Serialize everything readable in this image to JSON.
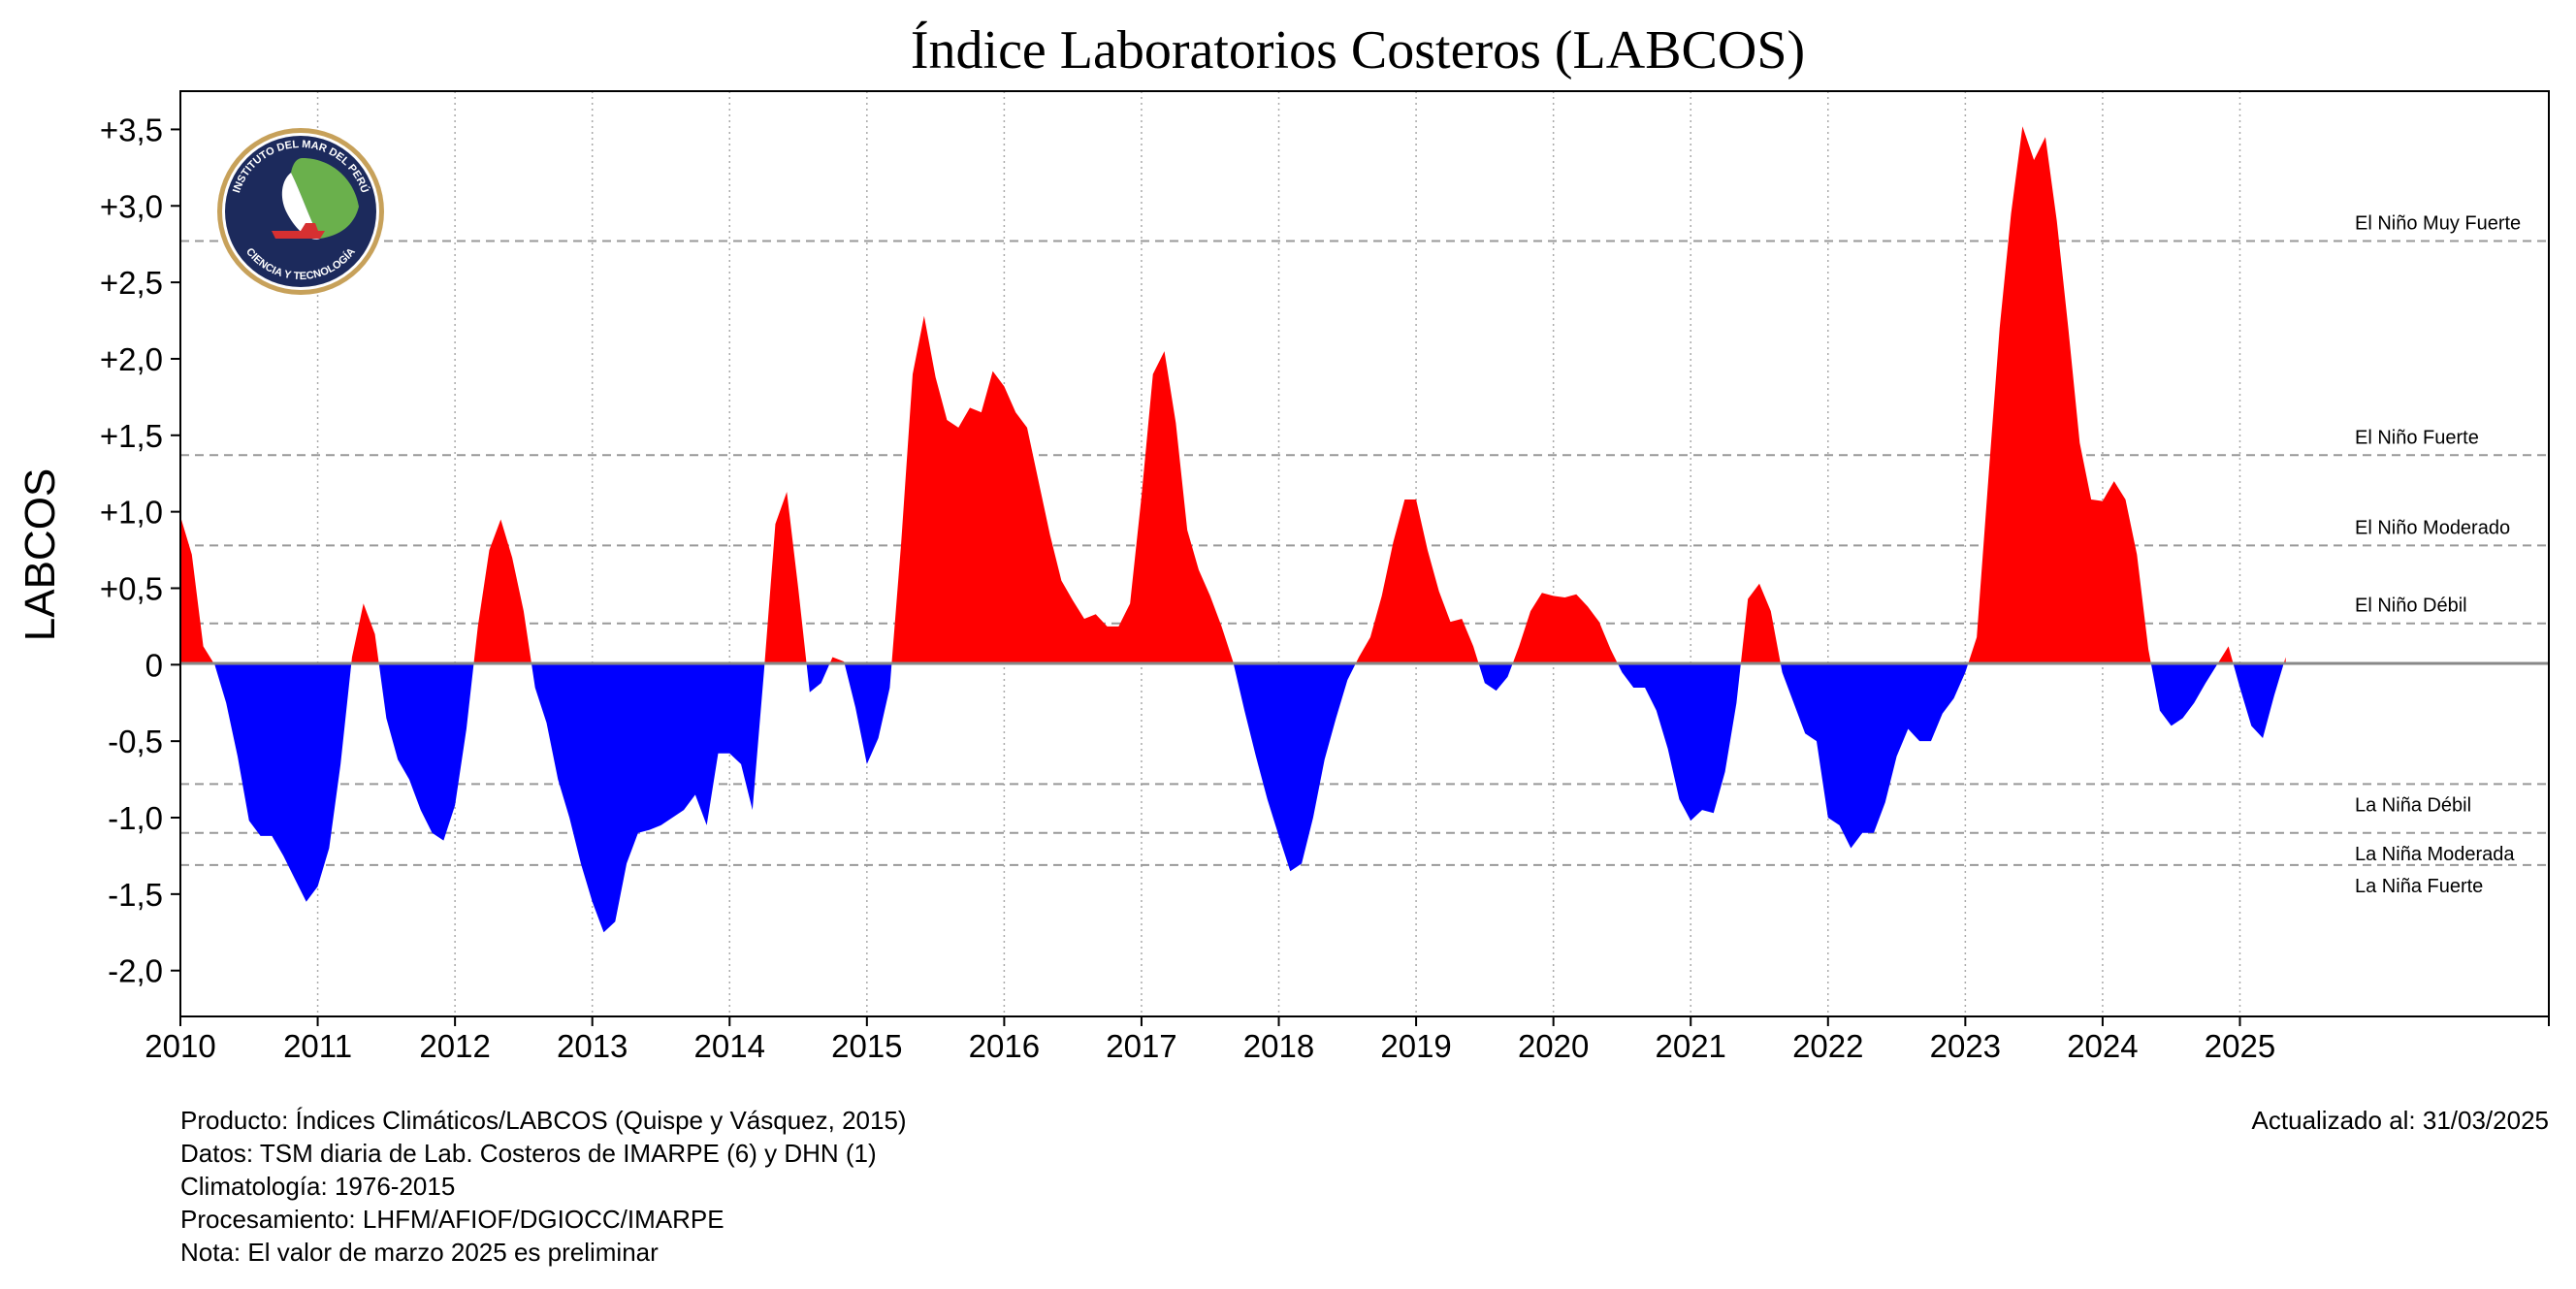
{
  "chart_data": {
    "type": "area",
    "title": "Índice Laboratorios Costeros (LABCOS)",
    "ylabel": "LABCOS",
    "xlabel": "",
    "xlim": [
      2010,
      2027.25
    ],
    "ylim": [
      -2.3,
      3.75
    ],
    "x_ticks": [
      "2010",
      "2011",
      "2012",
      "2013",
      "2014",
      "2015",
      "2016",
      "2017",
      "2018",
      "2019",
      "2020",
      "2021",
      "2022",
      "2023",
      "2024",
      "2025"
    ],
    "y_ticks": [
      {
        "v": 3.5,
        "label": "+3,5"
      },
      {
        "v": 3.0,
        "label": "+3,0"
      },
      {
        "v": 2.5,
        "label": "+2,5"
      },
      {
        "v": 2.0,
        "label": "+2,0"
      },
      {
        "v": 1.5,
        "label": "+1,5"
      },
      {
        "v": 1.0,
        "label": "+1,0"
      },
      {
        "v": 0.5,
        "label": "+0,5"
      },
      {
        "v": 0,
        "label": "0"
      },
      {
        "v": -0.5,
        "label": "-0,5"
      },
      {
        "v": -1.0,
        "label": "-1,0"
      },
      {
        "v": -1.5,
        "label": "-1,5"
      },
      {
        "v": -2.0,
        "label": "-2,0"
      }
    ],
    "grid": true,
    "positive_color": "#ff0000",
    "negative_color": "#0000ff",
    "thresholds": [
      {
        "name": "El Niño Muy Fuerte",
        "value": 2.77
      },
      {
        "name": "El Niño Fuerte",
        "value": 1.37
      },
      {
        "name": "El Niño Moderado",
        "value": 0.78
      },
      {
        "name": "El Niño Débil",
        "value": 0.27
      },
      {
        "name": "La Niña Débil",
        "value": -0.78
      },
      {
        "name": "La Niña Moderada",
        "value": -1.1
      },
      {
        "name": "La Niña Fuerte",
        "value": -1.31
      }
    ],
    "series": [
      {
        "values": [
          0.97,
          0.72,
          0.12,
          0.0,
          -0.25,
          -0.6,
          -1.02,
          -1.12,
          -1.12,
          -1.25,
          -1.4,
          -1.55,
          -1.45,
          -1.2,
          -0.65,
          0.05,
          0.4,
          0.2,
          -0.35,
          -0.62,
          -0.75,
          -0.95,
          -1.1,
          -1.15,
          -0.92,
          -0.42,
          0.25,
          0.75,
          0.95,
          0.7,
          0.35,
          -0.15,
          -0.38,
          -0.75,
          -1.0,
          -1.3,
          -1.55,
          -1.75,
          -1.68,
          -1.3,
          -1.1,
          -1.08,
          -1.05,
          -1.0,
          -0.95,
          -0.85,
          -1.05,
          -0.58,
          -0.58,
          -0.65,
          -0.95,
          -0.05,
          0.92,
          1.13,
          0.5,
          -0.18,
          -0.12,
          0.05,
          0.02,
          -0.28,
          -0.65,
          -0.48,
          -0.15,
          0.8,
          1.9,
          2.28,
          1.88,
          1.6,
          1.55,
          1.68,
          1.65,
          1.92,
          1.82,
          1.65,
          1.55,
          1.2,
          0.85,
          0.55,
          0.42,
          0.3,
          0.33,
          0.25,
          0.25,
          0.4,
          1.1,
          1.9,
          2.05,
          1.58,
          0.88,
          0.62,
          0.45,
          0.25,
          0.02,
          -0.3,
          -0.6,
          -0.88,
          -1.12,
          -1.35,
          -1.3,
          -1.0,
          -0.62,
          -0.35,
          -0.1,
          0.05,
          0.18,
          0.45,
          0.8,
          1.08,
          1.08,
          0.75,
          0.48,
          0.28,
          0.3,
          0.12,
          -0.12,
          -0.17,
          -0.08,
          0.12,
          0.35,
          0.47,
          0.45,
          0.44,
          0.46,
          0.38,
          0.28,
          0.1,
          -0.05,
          -0.15,
          -0.15,
          -0.3,
          -0.55,
          -0.88,
          -1.02,
          -0.95,
          -0.97,
          -0.7,
          -0.25,
          0.43,
          0.53,
          0.35,
          -0.05,
          -0.25,
          -0.45,
          -0.5,
          -1.0,
          -1.05,
          -1.2,
          -1.1,
          -1.1,
          -0.9,
          -0.6,
          -0.42,
          -0.5,
          -0.5,
          -0.32,
          -0.22,
          -0.05,
          0.18,
          1.2,
          2.2,
          2.95,
          3.52,
          3.3,
          3.45,
          2.9,
          2.2,
          1.45,
          1.08,
          1.07,
          1.2,
          1.08,
          0.72,
          0.1,
          -0.3,
          -0.4,
          -0.35,
          -0.25,
          -0.12,
          0.0,
          0.12,
          -0.15,
          -0.4,
          -0.48,
          -0.2,
          0.05
        ]
      }
    ]
  },
  "footer": {
    "line1": "Producto: Índices Climáticos/LABCOS (Quispe y Vásquez, 2015)",
    "line2": "Datos: TSM diaria de Lab. Costeros de IMARPE (6) y DHN (1)",
    "line3": "Climatología: 1976-2015",
    "line4": "Procesamiento: LHFM/AFIOF/DGIOCC/IMARPE",
    "line5": "Nota: El valor de marzo 2025 es preliminar",
    "updated": "Actualizado al: 31/03/2025"
  },
  "logo": {
    "top_text": "INSTITUTO DEL MAR DEL PERÚ",
    "bottom_text": "CIENCIA Y TECNOLOGÍA"
  }
}
